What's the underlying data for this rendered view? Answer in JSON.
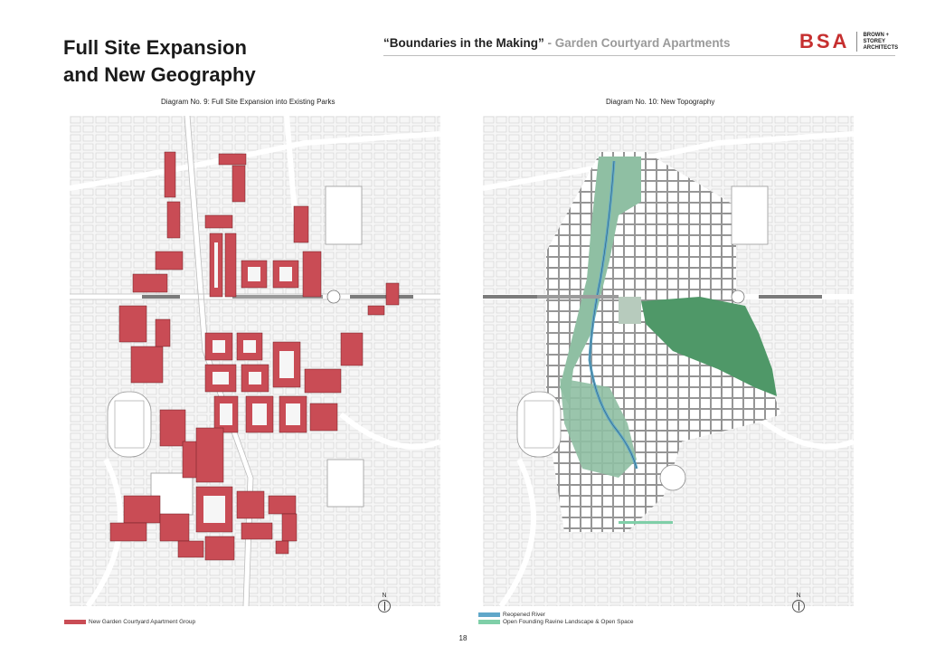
{
  "page": {
    "title_line1": "Full Site Expansion",
    "title_line2": "and New Geography",
    "header_main": "“Boundaries in the Making”",
    "header_sub": " - Garden Courtyard Apartments",
    "page_number": "18"
  },
  "logo": {
    "mark": "BSA",
    "words": [
      "BROWN +",
      "STOREY",
      "ARCHITECTS"
    ]
  },
  "diagrams": [
    {
      "caption": "Diagram No. 9: Full Site Expansion into Existing Parks",
      "north": "N",
      "legend": [
        {
          "label": "New Garden Courtyard Apartment Group",
          "color": "#c94c55"
        }
      ]
    },
    {
      "caption": "Diagram No. 10: New Topography",
      "north": "N",
      "legend": [
        {
          "label": "Reopened River",
          "color": "#5fa7c9"
        },
        {
          "label": "Open Founding Ravine Landscape & Open Space",
          "color": "#7fcfa8"
        }
      ]
    }
  ],
  "colors": {
    "accent": "#c62f2f",
    "apartment": "#c94c55",
    "river": "#5fa7c9",
    "open_space": "#7fcfa8",
    "park_dark": "#3f8a58"
  },
  "icons": [
    "north-arrow-icon"
  ]
}
